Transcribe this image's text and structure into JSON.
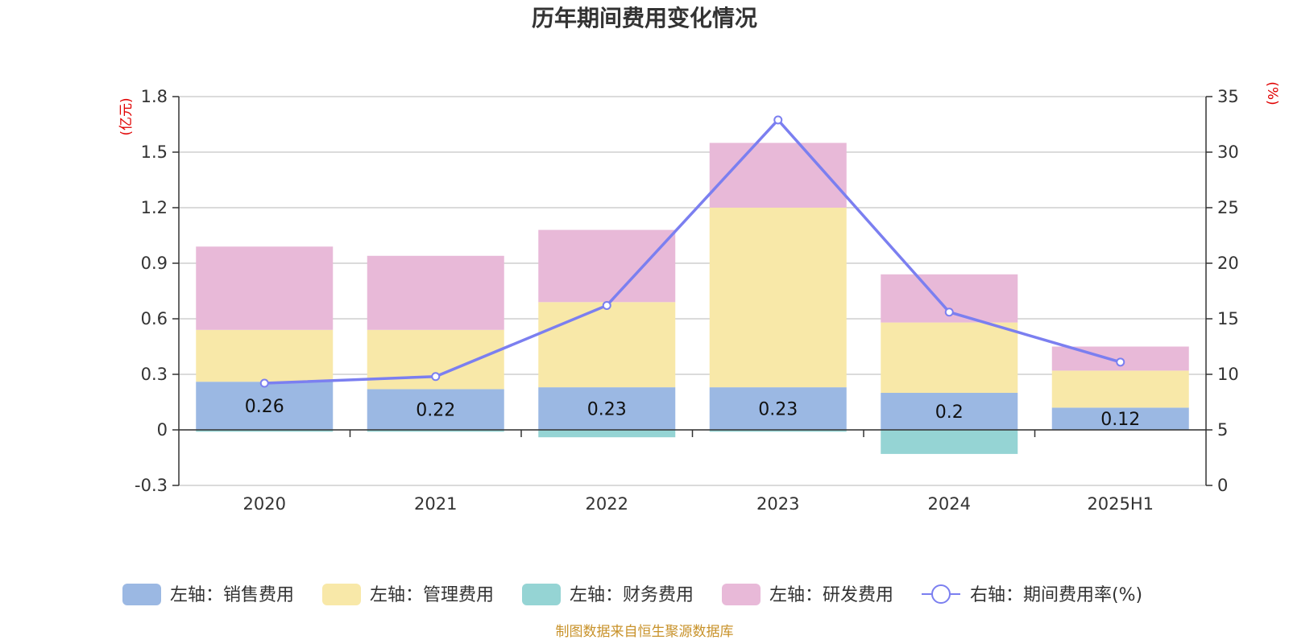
{
  "chart_data": {
    "title": "历年期间费用变化情况",
    "type": "bar",
    "stacked": true,
    "categories": [
      "2020",
      "2021",
      "2022",
      "2023",
      "2024",
      "2025H1"
    ],
    "y_left": {
      "unit": "(亿元)",
      "min": -0.3,
      "max": 1.8,
      "ticks": [
        -0.3,
        0,
        0.3,
        0.6,
        0.9,
        1.2,
        1.5,
        1.8
      ],
      "tick_labels": [
        "-0.3",
        "0",
        "0.3",
        "0.6",
        "0.9",
        "1.2",
        "1.5",
        "1.8"
      ]
    },
    "y_right": {
      "unit": "(%)",
      "min": 0,
      "max": 35,
      "ticks": [
        0,
        5,
        10,
        15,
        20,
        25,
        30,
        35
      ],
      "tick_labels": [
        "0",
        "5",
        "10",
        "15",
        "20",
        "25",
        "30",
        "35"
      ]
    },
    "series": [
      {
        "name": "左轴：销售费用",
        "axis": "left",
        "color": "#9bb8e3",
        "values": [
          0.26,
          0.22,
          0.23,
          0.23,
          0.2,
          0.12
        ],
        "labels": [
          "0.26",
          "0.22",
          "0.23",
          "0.23",
          "0.2",
          "0.12"
        ]
      },
      {
        "name": "左轴：管理费用",
        "axis": "left",
        "color": "#f8e8a8",
        "values": [
          0.28,
          0.32,
          0.46,
          0.97,
          0.38,
          0.2
        ]
      },
      {
        "name": "左轴：财务费用",
        "axis": "left",
        "color": "#95d4d4",
        "values": [
          -0.01,
          -0.01,
          -0.04,
          -0.01,
          -0.13,
          0.0
        ]
      },
      {
        "name": "左轴：研发费用",
        "axis": "left",
        "color": "#e8b9d8",
        "values": [
          0.45,
          0.4,
          0.39,
          0.35,
          0.26,
          0.13
        ]
      }
    ],
    "line": {
      "name": "右轴：期间费用率(%)",
      "axis": "right",
      "color": "#7b7ff0",
      "values": [
        9.2,
        9.8,
        16.2,
        32.9,
        15.6,
        11.1
      ]
    },
    "grid": true,
    "legend_position": "bottom"
  },
  "source_note": "制图数据来自恒生聚源数据库"
}
